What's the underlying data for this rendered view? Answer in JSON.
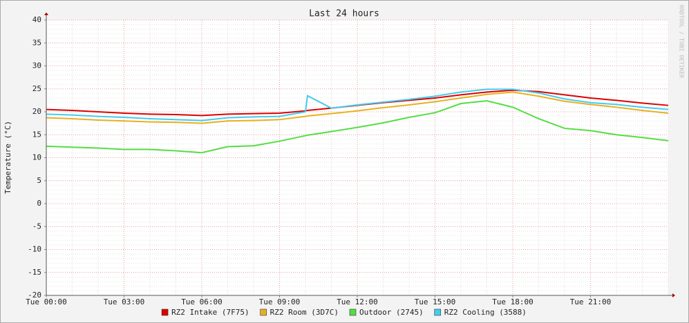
{
  "chart_data": {
    "type": "line",
    "title": "Last 24 hours",
    "y_label": "Temperature (°C)",
    "watermark": "RRDTOOL / TOBI OETIKER",
    "x": [
      0,
      1,
      2,
      3,
      4,
      5,
      6,
      7,
      8,
      9,
      10,
      10.08,
      11,
      12,
      13,
      14,
      15,
      16,
      17,
      18,
      19,
      20,
      21,
      22,
      23,
      24
    ],
    "series": [
      {
        "name": "RZ2 Intake (7F75)",
        "color": "#dd0000",
        "values": [
          20.5,
          20.3,
          20.0,
          19.7,
          19.5,
          19.4,
          19.2,
          19.5,
          19.6,
          19.7,
          20.2,
          20.3,
          20.8,
          21.4,
          22.0,
          22.5,
          23.0,
          23.7,
          24.3,
          24.7,
          24.4,
          23.7,
          23.0,
          22.5,
          21.9,
          21.4
        ]
      },
      {
        "name": "RZ2 Room (3D7C)",
        "color": "#e8b020",
        "values": [
          18.7,
          18.5,
          18.2,
          18.0,
          17.8,
          17.7,
          17.5,
          18.0,
          18.1,
          18.3,
          19.0,
          19.1,
          19.6,
          20.2,
          20.9,
          21.5,
          22.2,
          23.0,
          23.8,
          24.3,
          23.4,
          22.3,
          21.6,
          21.0,
          20.3,
          19.7
        ]
      },
      {
        "name": "Outdoor (2745)",
        "color": "#55dd44",
        "values": [
          12.5,
          12.3,
          12.1,
          11.8,
          11.8,
          11.5,
          11.1,
          12.4,
          12.6,
          13.6,
          14.8,
          14.9,
          15.7,
          16.6,
          17.6,
          18.8,
          19.8,
          21.8,
          22.4,
          21.0,
          18.5,
          16.4,
          15.9,
          15.0,
          14.4,
          13.7
        ]
      },
      {
        "name": "RZ2 Cooling (3588)",
        "color": "#44ccee",
        "values": [
          19.5,
          19.3,
          19.0,
          18.8,
          18.5,
          18.3,
          18.1,
          18.7,
          18.9,
          19.0,
          20.0,
          23.5,
          20.8,
          21.5,
          22.1,
          22.7,
          23.4,
          24.3,
          24.9,
          24.9,
          24.1,
          22.8,
          22.0,
          21.6,
          21.0,
          20.5
        ]
      }
    ],
    "xlim": [
      0,
      24
    ],
    "xticks": [
      {
        "value": 0,
        "label": "Tue 00:00"
      },
      {
        "value": 3,
        "label": "Tue 03:00"
      },
      {
        "value": 6,
        "label": "Tue 06:00"
      },
      {
        "value": 9,
        "label": "Tue 09:00"
      },
      {
        "value": 12,
        "label": "Tue 12:00"
      },
      {
        "value": 15,
        "label": "Tue 15:00"
      },
      {
        "value": 18,
        "label": "Tue 18:00"
      },
      {
        "value": 21,
        "label": "Tue 21:00"
      }
    ],
    "ylim": [
      -20,
      40
    ],
    "yticks": [
      -20,
      -15,
      -10,
      -5,
      0,
      5,
      10,
      15,
      20,
      25,
      30,
      35,
      40
    ],
    "grid": true,
    "grid_minor": {
      "x": 1,
      "y": 1
    },
    "legend": "bottom"
  }
}
